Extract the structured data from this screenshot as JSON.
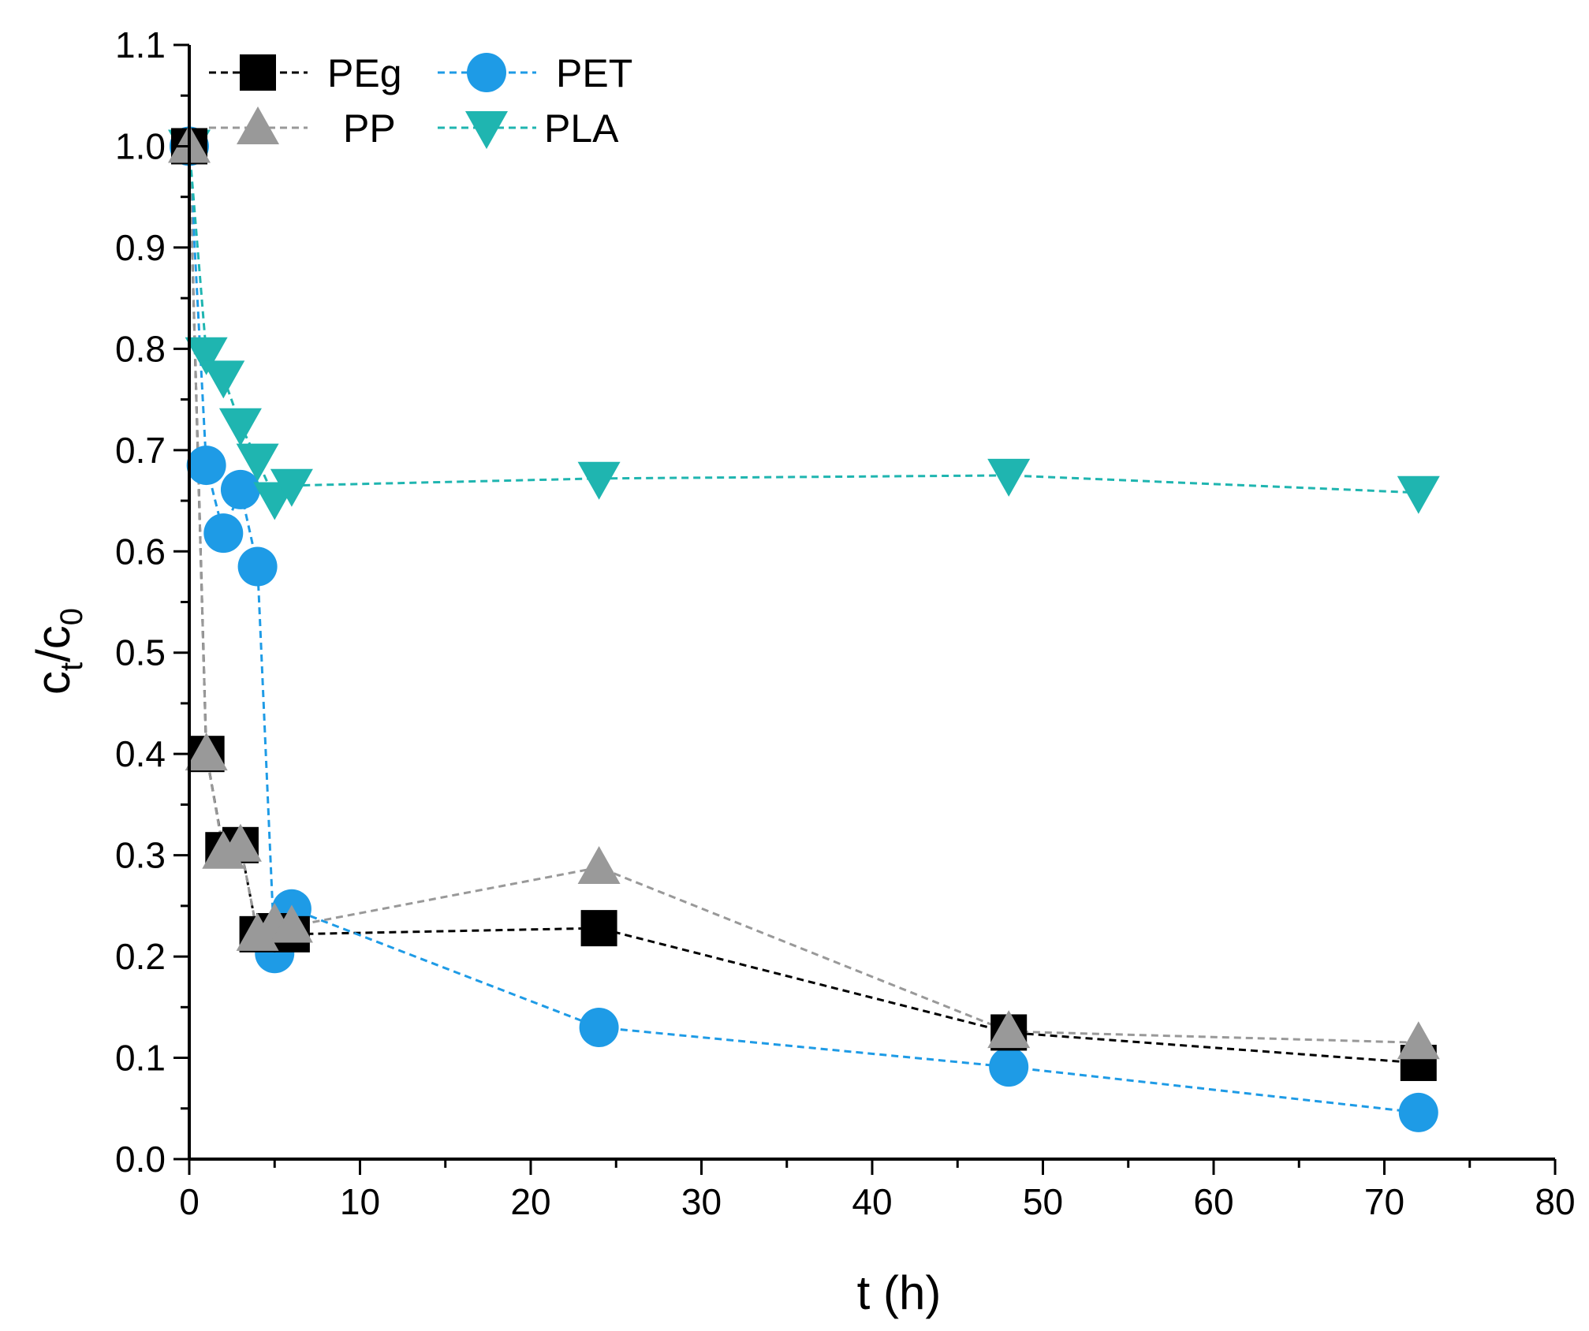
{
  "chart_data": {
    "type": "scatter",
    "xlabel": "t (h)",
    "ylabel": {
      "main1": "c",
      "sub1": "t",
      "slash": "/",
      "main2": "c",
      "sub2": "0"
    },
    "xlim": [
      0,
      80
    ],
    "ylim": [
      0,
      1.1
    ],
    "x_ticks": [
      "0",
      "10",
      "20",
      "30",
      "40",
      "50",
      "60",
      "70",
      "80"
    ],
    "y_ticks": [
      "0.0",
      "0.1",
      "0.2",
      "0.3",
      "0.4",
      "0.5",
      "0.6",
      "0.7",
      "0.8",
      "0.9",
      "1.0",
      "1.1"
    ],
    "grid": false,
    "legend_position": "top-left",
    "line_style": "dashed",
    "series": [
      {
        "name": "PEg",
        "marker": "square",
        "color": "#000000",
        "line_color": "#000000",
        "points": [
          [
            0,
            1.0
          ],
          [
            1,
            0.4
          ],
          [
            2,
            0.305
          ],
          [
            3,
            0.31
          ],
          [
            4,
            0.222
          ],
          [
            5,
            0.225
          ],
          [
            6,
            0.222
          ],
          [
            24,
            0.228
          ],
          [
            48,
            0.125
          ],
          [
            72,
            0.095
          ]
        ]
      },
      {
        "name": "PET",
        "marker": "circle",
        "color": "#1E9BE6",
        "line_color": "#1E9BE6",
        "points": [
          [
            0,
            1.0
          ],
          [
            1,
            0.685
          ],
          [
            2,
            0.618
          ],
          [
            3,
            0.661
          ],
          [
            4,
            0.585
          ],
          [
            5,
            0.203
          ],
          [
            6,
            0.247
          ],
          [
            24,
            0.13
          ],
          [
            48,
            0.091
          ],
          [
            72,
            0.046
          ]
        ]
      },
      {
        "name": "PP",
        "marker": "triangle-up",
        "color": "#999999",
        "line_color": "#999999",
        "points": [
          [
            0,
            1.0
          ],
          [
            1,
            0.4
          ],
          [
            2,
            0.303
          ],
          [
            3,
            0.31
          ],
          [
            4,
            0.222
          ],
          [
            5,
            0.232
          ],
          [
            6,
            0.23
          ],
          [
            24,
            0.288
          ],
          [
            48,
            0.126
          ],
          [
            72,
            0.115
          ]
        ]
      },
      {
        "name": "PLA",
        "marker": "triangle-down",
        "color": "#1FB5B0",
        "line_color": "#1FB5B0",
        "points": [
          [
            0,
            1.0
          ],
          [
            1,
            0.795
          ],
          [
            2,
            0.772
          ],
          [
            3,
            0.725
          ],
          [
            4,
            0.69
          ],
          [
            5,
            0.652
          ],
          [
            6,
            0.665
          ],
          [
            24,
            0.672
          ],
          [
            48,
            0.675
          ],
          [
            72,
            0.658
          ]
        ]
      }
    ]
  }
}
